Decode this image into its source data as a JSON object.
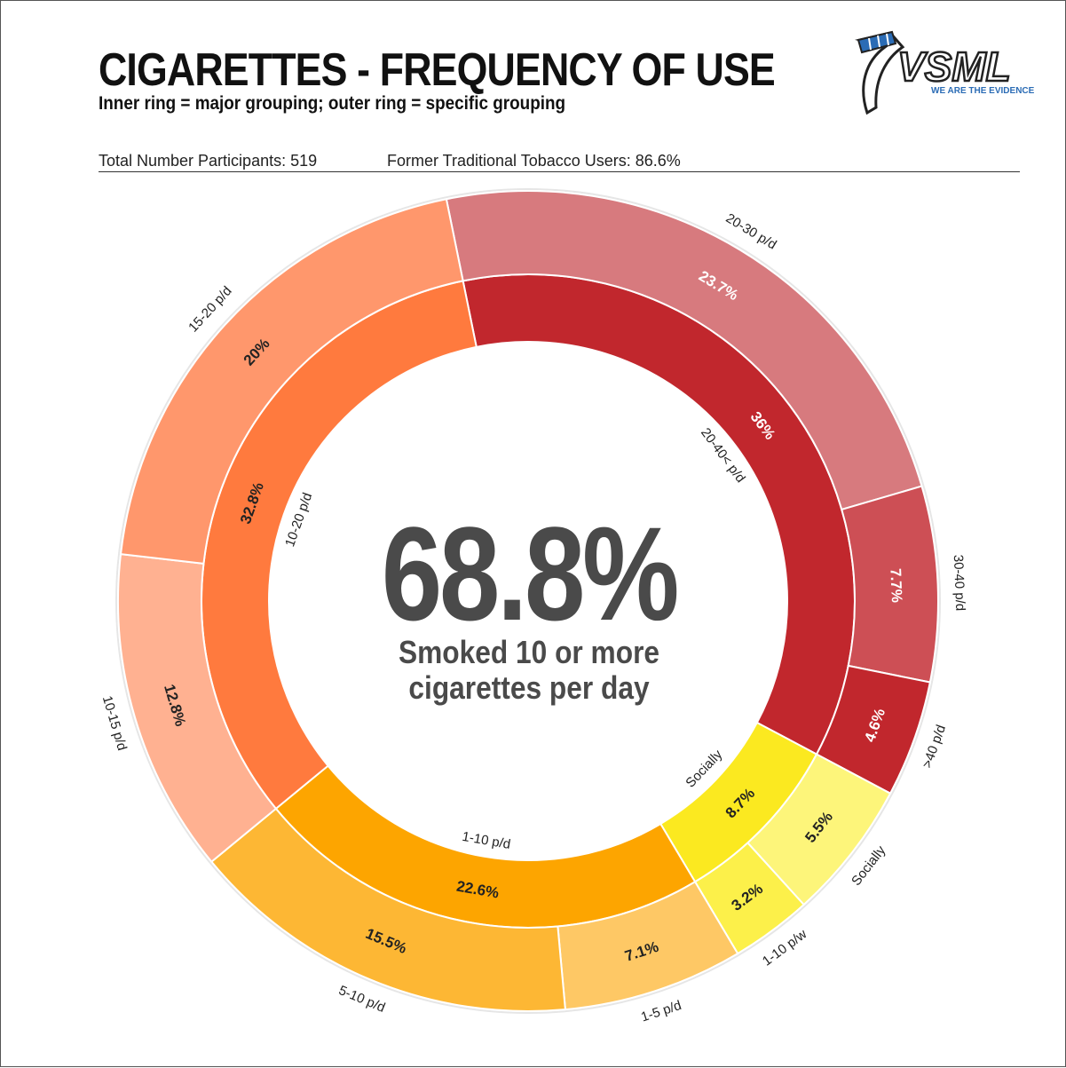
{
  "header": {
    "title": "CIGARETTES - FREQUENCY OF USE",
    "subtitle": "Inner ring = major grouping; outer ring = specific grouping",
    "stat_participants": "Total Number Participants: 519",
    "stat_former": "Former Traditional Tobacco Users: 86.6%"
  },
  "logo": {
    "text": "VSML",
    "tagline": "WE ARE THE EVIDENCE"
  },
  "center": {
    "big": "68.8%",
    "sub": "Smoked 10 or more cigarettes per day"
  },
  "chart_data": {
    "type": "pie",
    "variant": "two-ring donut",
    "inner_ring": [
      {
        "label": "20-40< p/d",
        "value": 36,
        "value_label": "36%",
        "color": "#c1272d"
      },
      {
        "label": "Socially",
        "value": 8.7,
        "value_label": "8.7%",
        "color": "#fbe920"
      },
      {
        "label": "1-10 p/d",
        "value": 22.6,
        "value_label": "22.6%",
        "color": "#fda500"
      },
      {
        "label": "10-20 p/d",
        "value": 32.8,
        "value_label": "32.8%",
        "color": "#ff7a3e"
      }
    ],
    "outer_ring": [
      {
        "label": "20-30 p/d",
        "value": 23.7,
        "value_label": "23.7%",
        "color": "#d77a7e"
      },
      {
        "label": "30-40 p/d",
        "value": 7.7,
        "value_label": "7.7%",
        "color": "#cd4f55"
      },
      {
        "label": ">40 p/d",
        "value": 4.6,
        "value_label": "4.6%",
        "color": "#c1272d"
      },
      {
        "label": "Socially",
        "value": 5.5,
        "value_label": "5.5%",
        "color": "#fdf57a"
      },
      {
        "label": "1-10 p/w",
        "value": 3.2,
        "value_label": "3.2%",
        "color": "#fcf04a"
      },
      {
        "label": "1-5 p/d",
        "value": 7.1,
        "value_label": "7.1%",
        "color": "#fec865"
      },
      {
        "label": "5-10 p/d",
        "value": 15.5,
        "value_label": "15.5%",
        "color": "#fdb734"
      },
      {
        "label": "10-15 p/d",
        "value": 12.8,
        "value_label": "12.8%",
        "color": "#ffb191"
      },
      {
        "label": "15-20 p/d",
        "value": 20,
        "value_label": "20%",
        "color": "#ff976c"
      }
    ],
    "start_angle_deg": -11.5,
    "direction": "clockwise",
    "legend": "none"
  }
}
